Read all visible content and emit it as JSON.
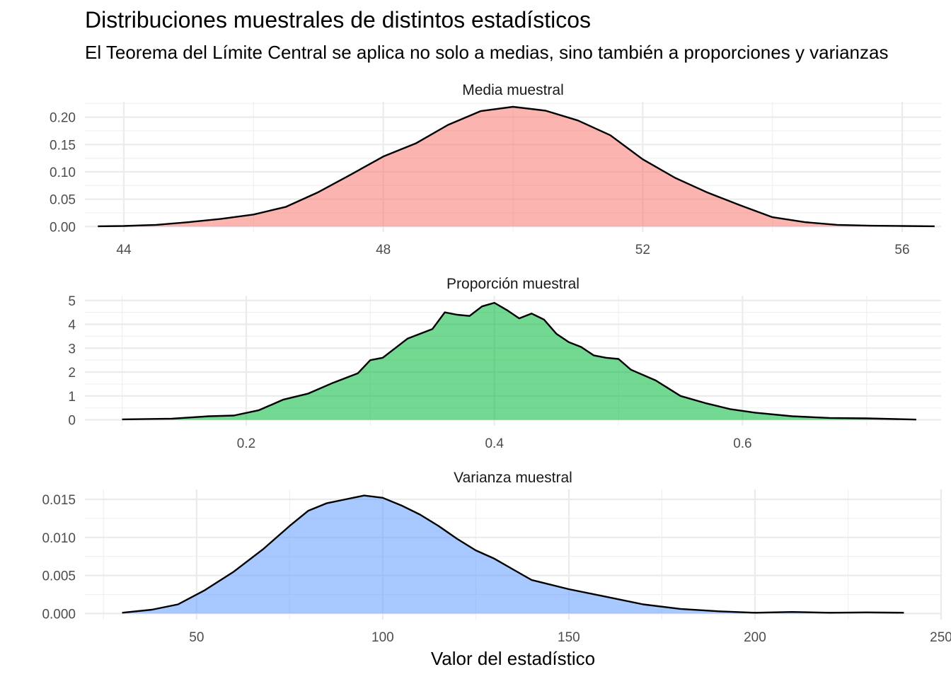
{
  "chart_data": {
    "type": "area",
    "title": "Distribuciones muestrales de distintos estadísticos",
    "subtitle": "El Teorema del Límite Central se aplica no solo a medias, sino también a proporciones y varianzas",
    "xlabel": "Valor del estadístico",
    "grid": true,
    "legend": "none",
    "panels": [
      {
        "name": "Media muestral",
        "color": "#f8766d",
        "xlim": [
          43.4,
          56.6
        ],
        "ylim": [
          -0.01,
          0.228
        ],
        "x_ticks": [
          44,
          48,
          52,
          56
        ],
        "x_tick_labels": [
          "44",
          "48",
          "52",
          "56"
        ],
        "y_ticks": [
          0,
          0.05,
          0.1,
          0.15,
          0.2
        ],
        "y_tick_labels": [
          "0.00",
          "0.05",
          "0.10",
          "0.15",
          "0.20"
        ],
        "x": [
          43.6,
          44.0,
          44.5,
          45.0,
          45.5,
          46.0,
          46.5,
          47.0,
          47.5,
          48.0,
          48.5,
          49.0,
          49.5,
          50.0,
          50.5,
          51.0,
          51.5,
          52.0,
          52.5,
          53.0,
          53.5,
          54.0,
          54.5,
          55.0,
          55.5,
          56.0,
          56.5
        ],
        "y": [
          0.0005,
          0.001,
          0.003,
          0.008,
          0.014,
          0.022,
          0.036,
          0.063,
          0.095,
          0.128,
          0.152,
          0.186,
          0.211,
          0.219,
          0.212,
          0.194,
          0.167,
          0.123,
          0.089,
          0.062,
          0.039,
          0.017,
          0.008,
          0.003,
          0.0015,
          0.001,
          0.0005
        ]
      },
      {
        "name": "Proporción muestral",
        "color": "#00ba38",
        "xlim": [
          0.07,
          0.76
        ],
        "ylim": [
          -0.25,
          5.2
        ],
        "x_ticks": [
          0.2,
          0.4,
          0.6
        ],
        "x_tick_labels": [
          "0.2",
          "0.4",
          "0.6"
        ],
        "y_ticks": [
          0,
          1,
          2,
          3,
          4,
          5
        ],
        "y_tick_labels": [
          "0",
          "1",
          "2",
          "3",
          "4",
          "5"
        ],
        "x": [
          0.1,
          0.14,
          0.17,
          0.19,
          0.21,
          0.23,
          0.25,
          0.27,
          0.29,
          0.3,
          0.31,
          0.33,
          0.35,
          0.36,
          0.37,
          0.38,
          0.39,
          0.4,
          0.41,
          0.42,
          0.43,
          0.44,
          0.45,
          0.46,
          0.47,
          0.48,
          0.49,
          0.5,
          0.51,
          0.53,
          0.55,
          0.57,
          0.59,
          0.61,
          0.64,
          0.67,
          0.7,
          0.74
        ],
        "y": [
          0.02,
          0.05,
          0.15,
          0.18,
          0.4,
          0.85,
          1.1,
          1.55,
          1.95,
          2.5,
          2.6,
          3.4,
          3.8,
          4.5,
          4.4,
          4.35,
          4.75,
          4.9,
          4.6,
          4.25,
          4.45,
          4.2,
          3.6,
          3.25,
          3.05,
          2.7,
          2.6,
          2.55,
          2.1,
          1.65,
          1.0,
          0.7,
          0.45,
          0.3,
          0.15,
          0.08,
          0.06,
          0.01
        ]
      },
      {
        "name": "Varianza muestral",
        "color": "#619cff",
        "xlim": [
          20,
          250
        ],
        "ylim": [
          -0.0008,
          0.0163
        ],
        "x_ticks": [
          50,
          100,
          150,
          200,
          250
        ],
        "x_tick_labels": [
          "50",
          "100",
          "150",
          "200",
          "250"
        ],
        "y_ticks": [
          0,
          0.005,
          0.01,
          0.015
        ],
        "y_tick_labels": [
          "0.000",
          "0.005",
          "0.010",
          "0.015"
        ],
        "x": [
          30,
          38,
          45,
          52,
          60,
          68,
          75,
          80,
          85,
          90,
          95,
          100,
          105,
          110,
          115,
          120,
          125,
          130,
          135,
          140,
          150,
          160,
          170,
          180,
          190,
          200,
          210,
          220,
          230,
          240
        ],
        "y": [
          0.0001,
          0.0005,
          0.0012,
          0.003,
          0.0055,
          0.0085,
          0.0115,
          0.0135,
          0.0145,
          0.015,
          0.0155,
          0.0152,
          0.0142,
          0.013,
          0.0115,
          0.0098,
          0.0083,
          0.0072,
          0.0058,
          0.0044,
          0.0032,
          0.0022,
          0.0012,
          0.0006,
          0.0003,
          0.0001,
          0.0002,
          0.0001,
          0.00015,
          0.0001
        ]
      }
    ]
  }
}
